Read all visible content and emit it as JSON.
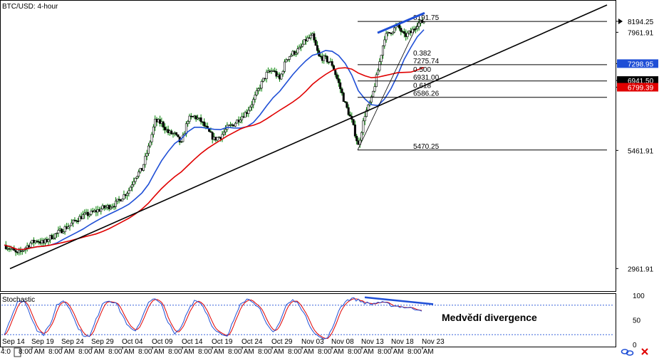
{
  "app": {
    "title": "BTC/USD: 4-hour",
    "indicator_label": "Stochastic",
    "annotation_text": "Medvědí divergence",
    "icons": [
      "link-icon",
      "close-icon"
    ]
  },
  "chart_data": {
    "type": "candlestick",
    "title": "BTC/USD: 4-hour",
    "price_axis": {
      "ylim": [
        2500,
        8600
      ],
      "tick_labels": [
        {
          "value": 8194.25,
          "label": "8194.25",
          "marker": true
        },
        {
          "value": 7961.91,
          "label": "7961.91"
        },
        {
          "value": 7298.95,
          "label": "7298.95",
          "badge_color": "#1f4fd6"
        },
        {
          "value": 6941.5,
          "label": "6941.50",
          "badge_color": "#000000"
        },
        {
          "value": 6799.39,
          "label": "6799.39",
          "badge_color": "#e00000"
        },
        {
          "value": 5461.91,
          "label": "5461.91"
        },
        {
          "value": 2961.91,
          "label": "2961.91"
        }
      ]
    },
    "x_tick_labels": [
      "Sep 14",
      "Sep 19",
      "Sep 24",
      "Sep 29",
      "Oct 04",
      "Oct 09",
      "Oct 14",
      "Oct 19",
      "Oct 24",
      "Oct 29",
      "Nov 03",
      "Nov 08",
      "Nov 13",
      "Nov 18",
      "Nov 23"
    ],
    "x_time_label": "8:00 AM",
    "x_first_fragment": "4:0",
    "fibonacci": [
      {
        "ratio": "",
        "price": 8191.75,
        "label": "8191.75"
      },
      {
        "ratio": "0.382",
        "price": 7275.74,
        "label": "7275.74"
      },
      {
        "ratio": "0.500",
        "price": 6931.0,
        "label": "6931.00"
      },
      {
        "ratio": "0.618",
        "price": 6586.26,
        "label": "6586.26"
      },
      {
        "ratio": "",
        "price": 5470.25,
        "label": "5470.25"
      }
    ],
    "close_path": [
      3460,
      3380,
      3260,
      3380,
      3500,
      3560,
      3500,
      3620,
      3700,
      3800,
      3880,
      4000,
      4080,
      4120,
      4180,
      4240,
      4280,
      4340,
      4480,
      4620,
      4920,
      5060,
      5520,
      6080,
      6040,
      5840,
      5800,
      5600,
      6120,
      6180,
      6080,
      5880,
      5700,
      5760,
      5940,
      6020,
      6160,
      6280,
      6520,
      6820,
      7080,
      7160,
      6960,
      7400,
      7520,
      7600,
      7800,
      7880,
      7440,
      7400,
      7280,
      6880,
      6440,
      6080,
      5560,
      6220,
      6540,
      7160,
      7860,
      7980,
      8100,
      7880,
      7960,
      8140,
      8194
    ],
    "moving_averages": [
      {
        "color": "#1f4fd6",
        "end_value": 7298.95
      },
      {
        "color": "#e00000",
        "end_value": 6799.39
      }
    ],
    "stochastic": {
      "ylim": [
        0,
        100
      ],
      "levels": [
        80,
        20
      ],
      "tick_labels": [
        "100",
        "50",
        "0"
      ],
      "main_color": "#1f4fd6",
      "signal_color": "#e00000",
      "values": [
        20,
        55,
        85,
        90,
        60,
        30,
        20,
        40,
        80,
        90,
        75,
        40,
        20,
        15,
        50,
        85,
        90,
        85,
        60,
        35,
        25,
        55,
        88,
        92,
        80,
        45,
        20,
        35,
        70,
        90,
        85,
        60,
        30,
        20,
        15,
        50,
        85,
        92,
        88,
        70,
        40,
        25,
        45,
        80,
        90,
        82,
        55,
        30,
        15,
        10,
        30,
        70,
        88,
        94,
        90,
        85,
        82,
        86,
        84,
        80,
        78,
        76,
        74,
        72,
        70
      ]
    },
    "trendlines": [
      "support",
      "resistance-high",
      "stochastic-high"
    ],
    "colors": {
      "candle": "#008000",
      "trend": "#000000",
      "divergence": "#1f4fd6"
    }
  }
}
